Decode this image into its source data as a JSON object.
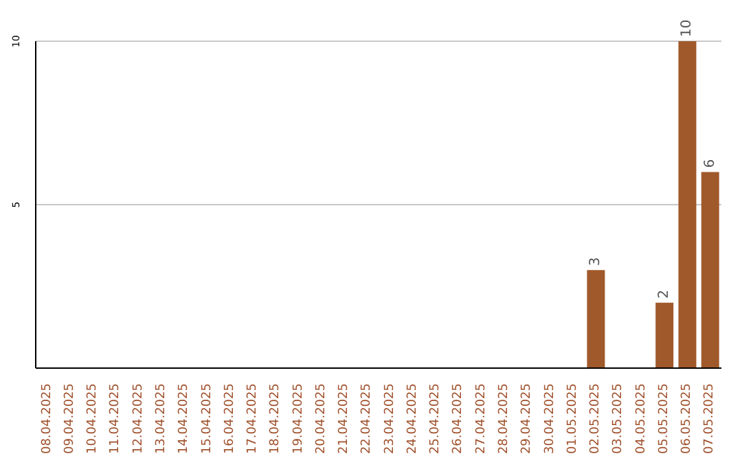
{
  "chart_data": {
    "type": "bar",
    "categories": [
      "08.04.2025",
      "09.04.2025",
      "10.04.2025",
      "11.04.2025",
      "12.04.2025",
      "13.04.2025",
      "14.04.2025",
      "15.04.2025",
      "16.04.2025",
      "17.04.2025",
      "18.04.2025",
      "19.04.2025",
      "20.04.2025",
      "21.04.2025",
      "22.04.2025",
      "23.04.2025",
      "24.04.2025",
      "25.04.2025",
      "26.04.2025",
      "27.04.2025",
      "28.04.2025",
      "29.04.2025",
      "30.04.2025",
      "01.05.2025",
      "02.05.2025",
      "03.05.2025",
      "04.05.2025",
      "05.05.2025",
      "06.05.2025",
      "07.05.2025"
    ],
    "values": [
      0,
      0,
      0,
      0,
      0,
      0,
      0,
      0,
      0,
      0,
      0,
      0,
      0,
      0,
      0,
      0,
      0,
      0,
      0,
      0,
      0,
      0,
      0,
      0,
      3,
      0,
      0,
      2,
      10,
      6
    ],
    "value_labels": [
      null,
      null,
      null,
      null,
      null,
      null,
      null,
      null,
      null,
      null,
      null,
      null,
      null,
      null,
      null,
      null,
      null,
      null,
      null,
      null,
      null,
      null,
      null,
      null,
      "3",
      null,
      null,
      "2",
      "10",
      "6"
    ],
    "color": "#a0592b",
    "ylim": [
      0,
      10
    ],
    "yticks": [
      5,
      10
    ],
    "grid": "y"
  }
}
